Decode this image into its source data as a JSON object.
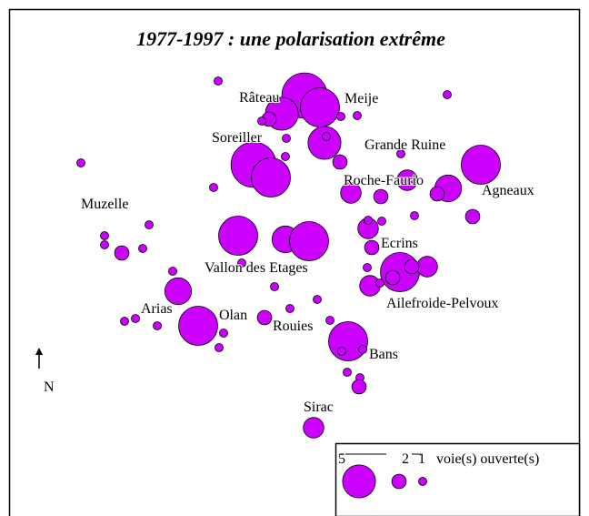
{
  "title": "1977-1997 : une polarisation extrême",
  "labels": [
    "Râteau",
    "Meije",
    "Soreiller",
    "Grande Ruine",
    "Roche-Faurio",
    "Agneaux",
    "Muzelle",
    "Ecrins",
    "Vallon des Etages",
    "Arias",
    "Olan",
    "Rouies",
    "Ailefroide-Pelvoux",
    "Bans",
    "Sirac"
  ],
  "north": "N",
  "legend": {
    "sizes": [
      5,
      2,
      1
    ],
    "unit": "voie(s) ouverte(s)"
  },
  "points": [
    1,
    1,
    7,
    6,
    5,
    2,
    1,
    1,
    1,
    5,
    1,
    1,
    1,
    6,
    2,
    7,
    6,
    1,
    3,
    4,
    2,
    3,
    2,
    1,
    1,
    2,
    1,
    3,
    1,
    1,
    2,
    1,
    1,
    2,
    1,
    1,
    6,
    4,
    6,
    1,
    6,
    3,
    2,
    2,
    3,
    1,
    1,
    1,
    4,
    6,
    1,
    1,
    1,
    2,
    1,
    1,
    1,
    1,
    1,
    1,
    6,
    1,
    1,
    1,
    1,
    2,
    3
  ]
}
